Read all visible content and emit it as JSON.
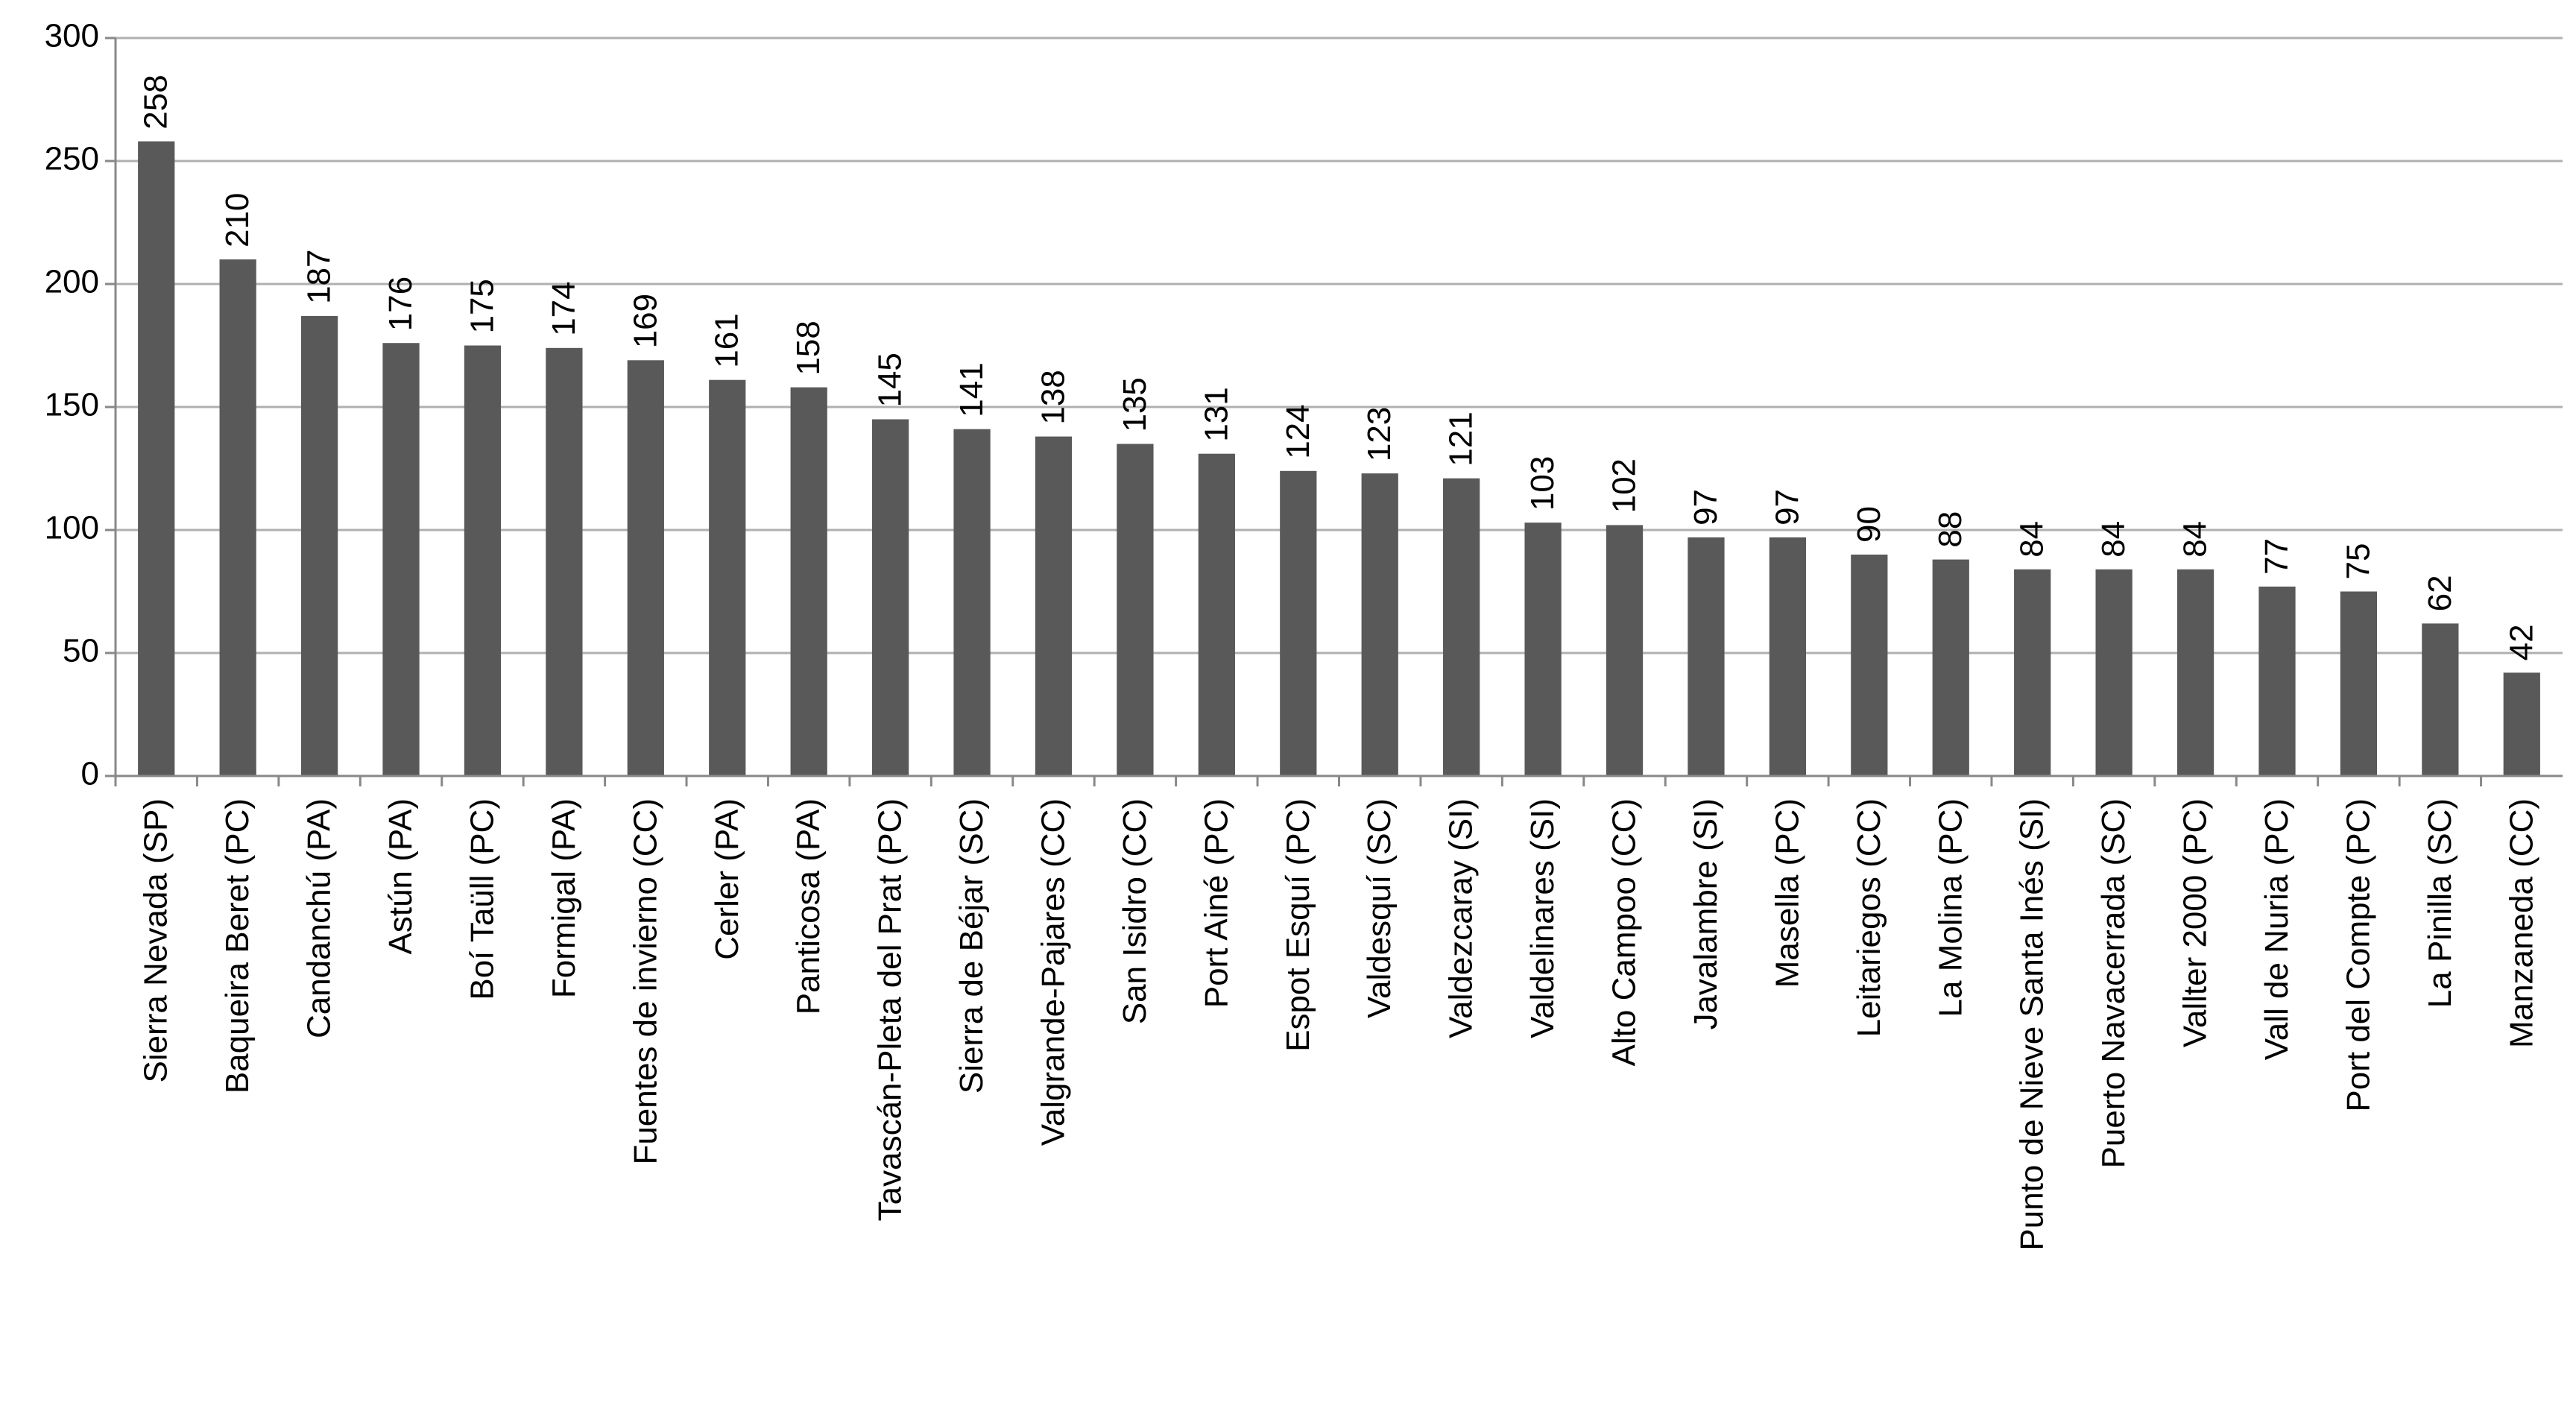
{
  "chart_data": {
    "type": "bar",
    "categories": [
      "Sierra Nevada (SP)",
      "Baqueira Beret (PC)",
      "Candanchú (PA)",
      "Astún (PA)",
      "Boí Taüll (PC)",
      "Formigal (PA)",
      "Fuentes de invierno (CC)",
      "Cerler (PA)",
      "Panticosa (PA)",
      "Tavascán-Pleta del Prat (PC)",
      "Sierra de Béjar (SC)",
      "Valgrande-Pajares (CC)",
      "San Isidro (CC)",
      "Port Ainé (PC)",
      "Espot Esquí (PC)",
      "Valdesquí (SC)",
      "Valdezcaray (SI)",
      "Valdelinares (SI)",
      "Alto Campoo (CC)",
      "Javalambre (SI)",
      "Masella (PC)",
      "Leitariegos (CC)",
      "La Molina (PC)",
      "Punto de Nieve Santa Inés (SI)",
      "Puerto Navacerrada (SC)",
      "Vallter 2000 (PC)",
      "Vall de Nuria (PC)",
      "Port del Compte (PC)",
      "La Pinilla (SC)",
      "Manzaneda (CC)"
    ],
    "values": [
      258,
      210,
      187,
      176,
      175,
      174,
      169,
      161,
      158,
      145,
      141,
      138,
      135,
      131,
      124,
      123,
      121,
      103,
      102,
      97,
      97,
      90,
      88,
      84,
      84,
      84,
      77,
      75,
      62,
      42
    ],
    "color": "#595959",
    "ylim": [
      0,
      300
    ],
    "yticks": [
      0,
      50,
      100,
      150,
      200,
      250,
      300
    ],
    "grid": true
  }
}
